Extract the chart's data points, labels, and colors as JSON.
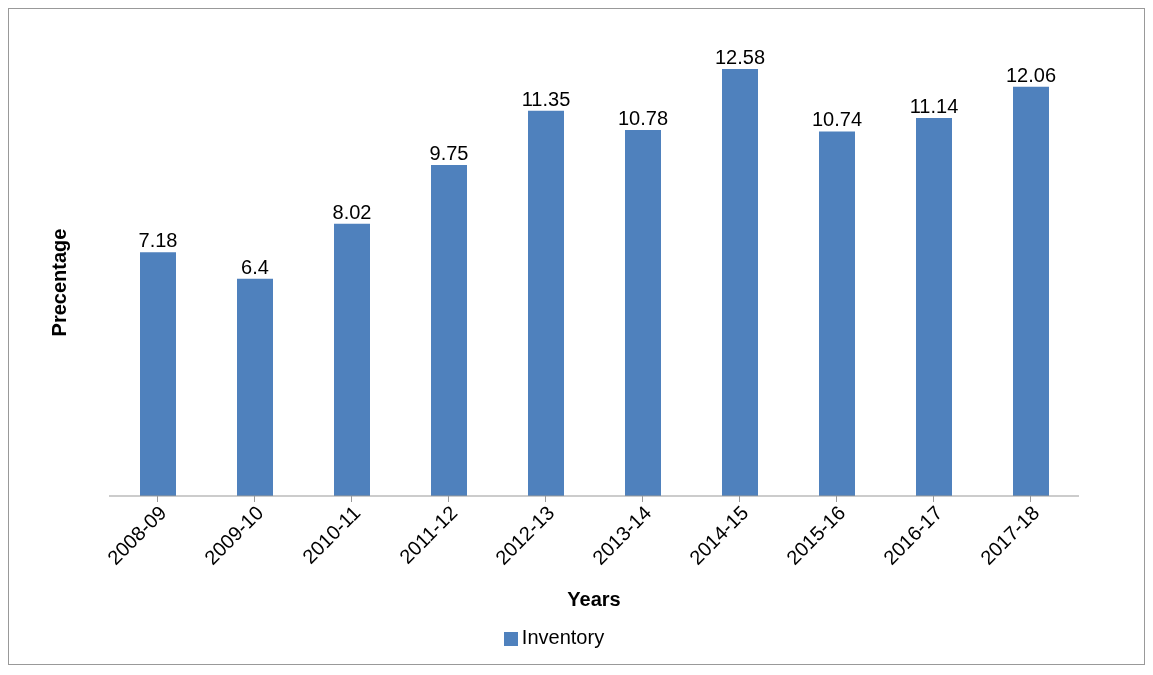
{
  "chart_data": {
    "type": "bar",
    "xlabel": "Years",
    "ylabel": "Precentage",
    "categories": [
      "2008-09",
      "2009-10",
      "2010-11",
      "2011-12",
      "2012-13",
      "2013-14",
      "2014-15",
      "2015-16",
      "2016-17",
      "2017-18"
    ],
    "series": [
      {
        "name": "Inventory",
        "color": "#4f81bd",
        "values": [
          7.18,
          6.4,
          8.02,
          9.75,
          11.35,
          10.78,
          12.58,
          10.74,
          11.14,
          12.06
        ]
      }
    ],
    "data_labels": true,
    "legend": "bottom",
    "grid": false
  }
}
